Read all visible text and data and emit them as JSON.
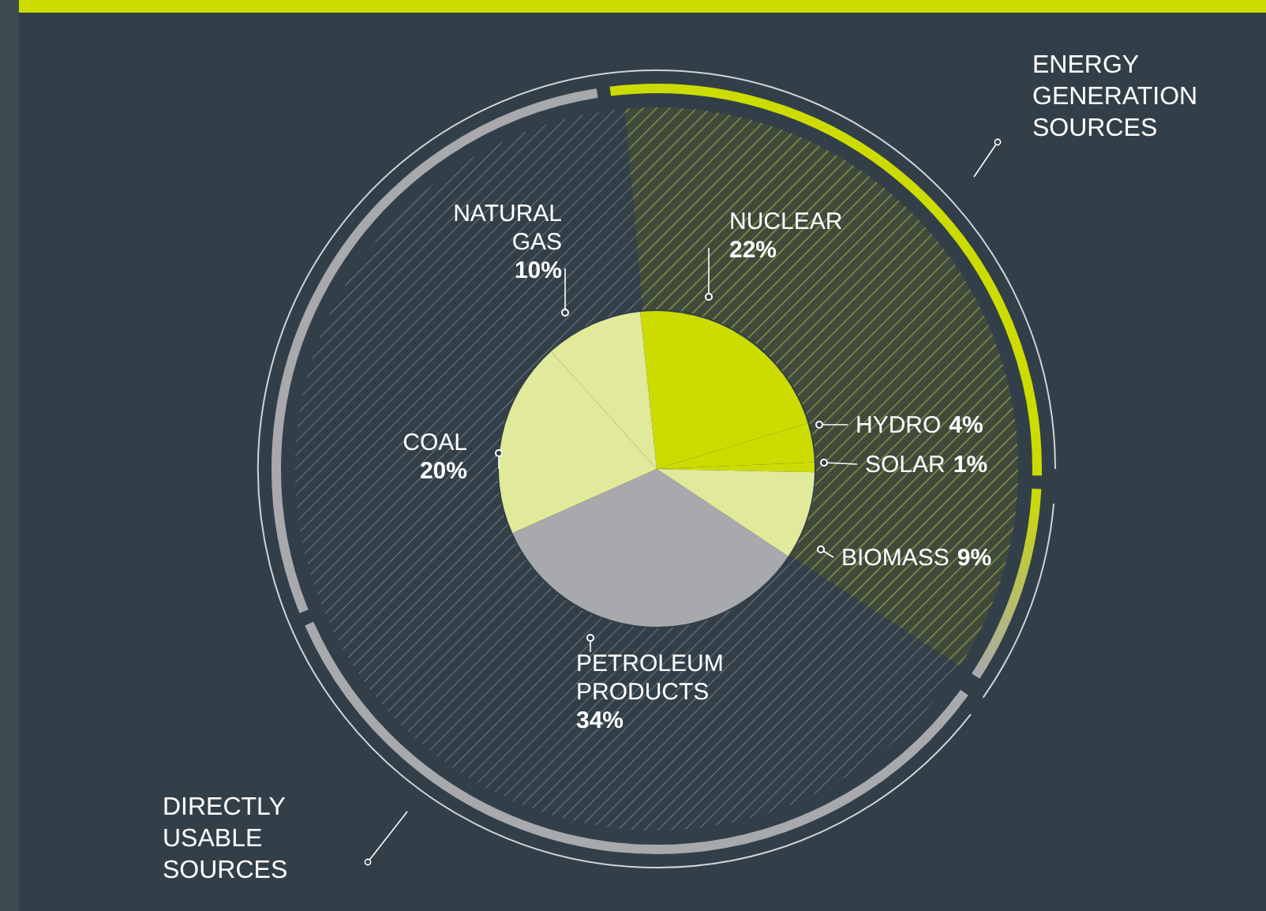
{
  "chart_data": {
    "type": "pie",
    "categories": [
      "NUCLEAR",
      "HYDRO",
      "SOLAR",
      "BIOMASS",
      "PETROLEUM PRODUCTS",
      "COAL",
      "NATURAL GAS"
    ],
    "values": [
      22,
      4,
      1,
      9,
      34,
      20,
      10
    ],
    "colors": [
      "#cddc00",
      "#cddc00",
      "#cddc00",
      "#e1e99a",
      "#a7a9ac",
      "#e1e99a",
      "#e1e99a"
    ],
    "value_labels": [
      "22%",
      "4%",
      "1%",
      "9%",
      "34%",
      "20%",
      "10%"
    ],
    "annotations": [
      "ENERGY GENERATION SOURCES",
      "DIRECTLY USABLE SOURCES"
    ]
  }
}
